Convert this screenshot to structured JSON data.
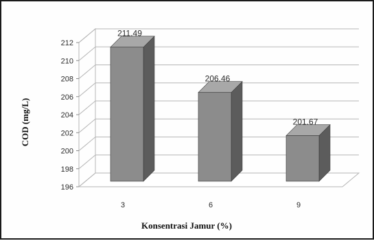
{
  "chart_data": {
    "type": "bar",
    "title": "",
    "xlabel": "Konsentrasi Jamur (%)",
    "ylabel": "COD (mg/L)",
    "categories": [
      "3",
      "6",
      "9"
    ],
    "values": [
      211.49,
      206.46,
      201.67
    ],
    "value_labels": [
      "211.49",
      "206.46",
      "201.67"
    ],
    "ylim": [
      196,
      212
    ],
    "yticks": [
      "196",
      "198",
      "200",
      "202",
      "204",
      "206",
      "208",
      "210",
      "212"
    ],
    "grid": true,
    "legend": "none",
    "style": "3d",
    "colors": {
      "bar_front": "#8c8c8c",
      "bar_side": "#5c5c5c",
      "bar_top": "#a8a8a8",
      "gridline": "#b5b5b5",
      "wall": "#ffffff"
    }
  }
}
